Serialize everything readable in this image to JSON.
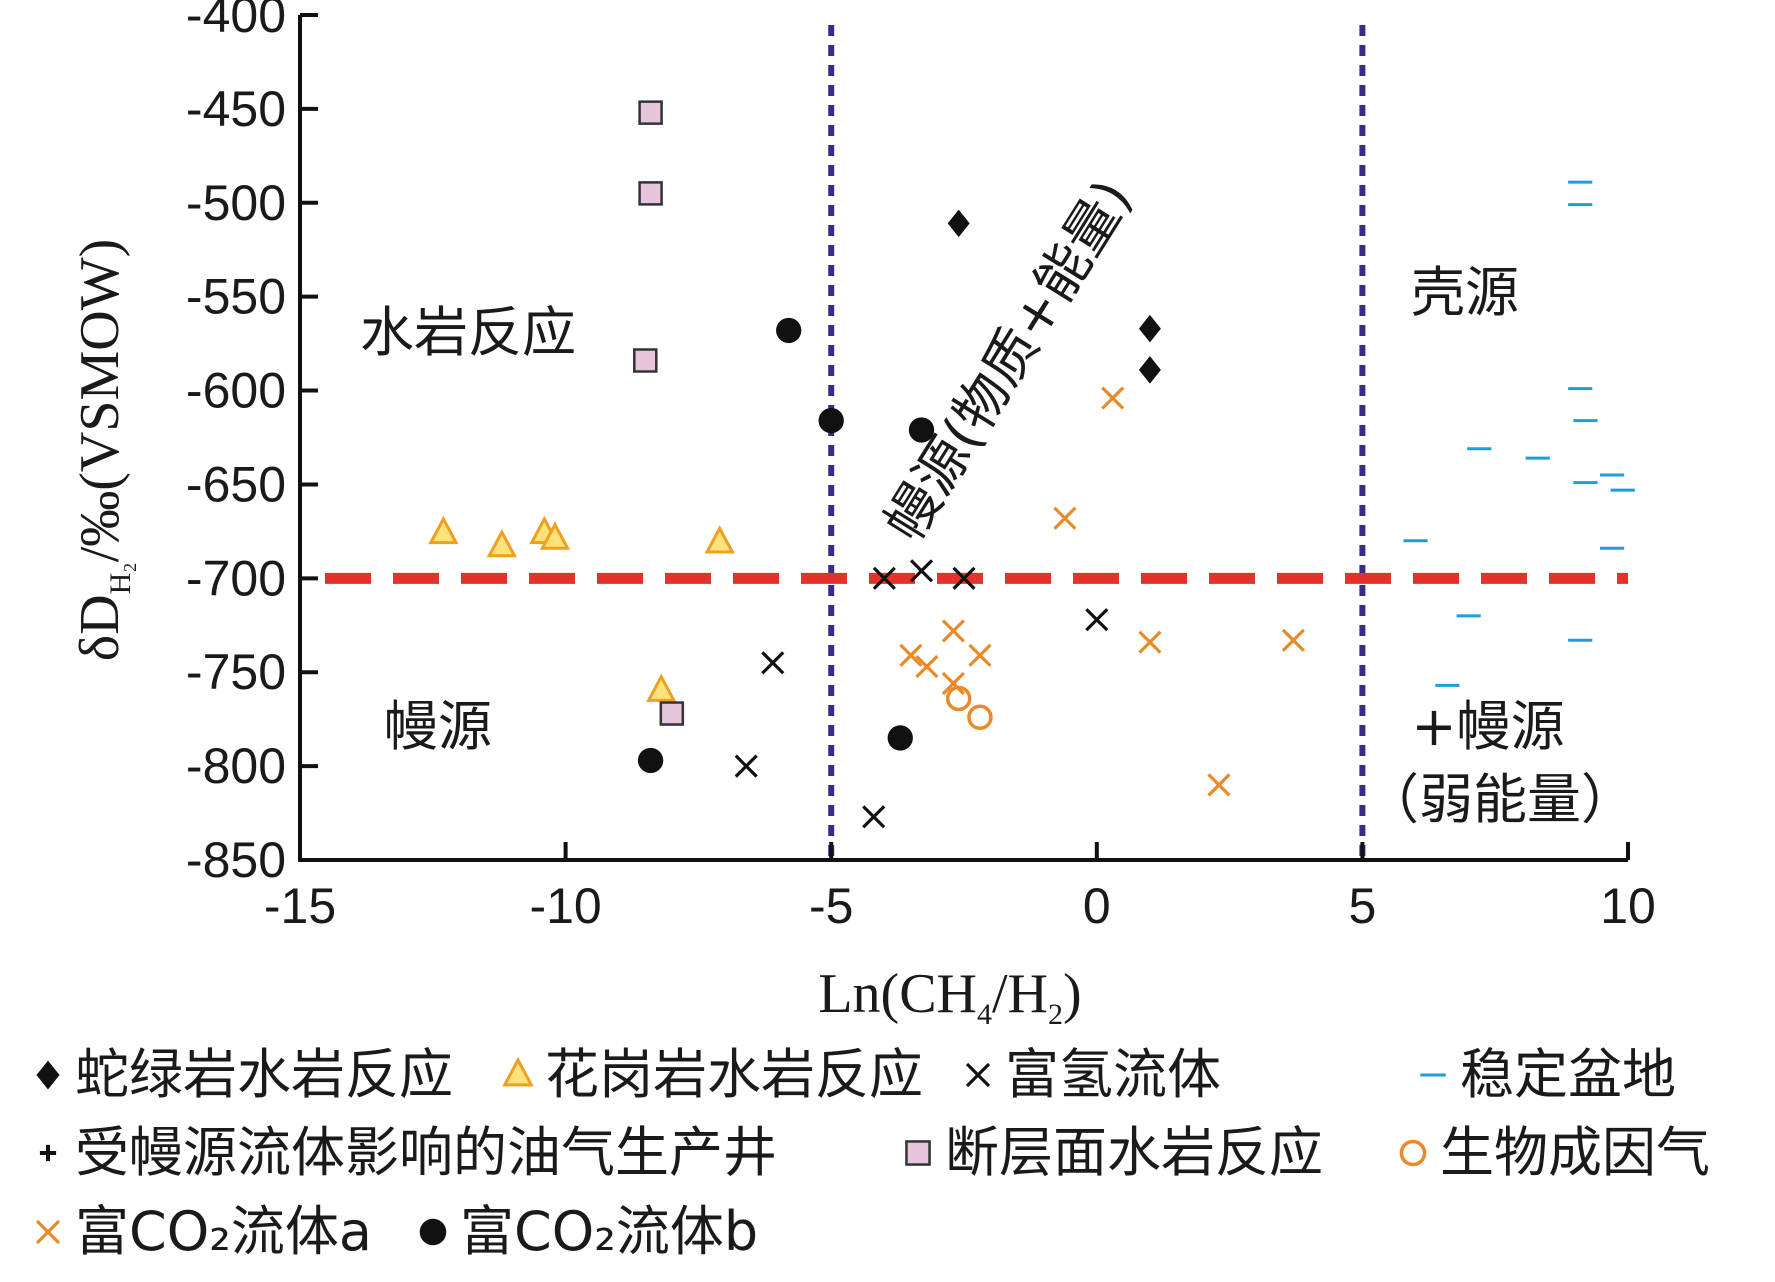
{
  "chart_data": {
    "type": "scatter",
    "xlabel": {
      "prefix": "Ln(CH",
      "sub1": "4",
      "mid": "/H",
      "sub2": "2",
      "suffix": ")"
    },
    "ylabel": {
      "prefix": "δD",
      "sub": "H₂",
      "suffix": "/‰(VSMOW)"
    },
    "xlim": [
      -15,
      10
    ],
    "ylim": [
      -850,
      -400
    ],
    "xticks": [
      -15,
      -10,
      -5,
      0,
      5,
      10
    ],
    "yticks": [
      -400,
      -450,
      -500,
      -550,
      -600,
      -650,
      -700,
      -750,
      -800,
      -850
    ],
    "xtick_labels": [
      "-15",
      "-10",
      "-5",
      "0",
      "5",
      "10"
    ],
    "ytick_labels": [
      "-400",
      "-450",
      "-500",
      "-550",
      "-600",
      "-650",
      "-700",
      "-750",
      "-800",
      "-850"
    ],
    "reference_lines": {
      "vertical_x": [
        -5,
        5
      ],
      "vertical_color": "#3b2a8a",
      "horizontal_y": -700,
      "horizontal_color": "#e4322b"
    },
    "regions": {
      "water_rock": "水岩反应",
      "mantle": "幔源",
      "mantle_matter_energy": "幔源(物质+能量)",
      "crust": "壳源",
      "crust_plus_mantle_line1": "+幔源",
      "crust_plus_mantle_line2": "（弱能量）"
    },
    "series": [
      {
        "name": "蛇绿岩水岩反应",
        "marker": "diamond",
        "color": "#111111",
        "x": [
          -2.6,
          1.0,
          1.0
        ],
        "y": [
          -511,
          -567,
          -589
        ]
      },
      {
        "name": "花岗岩水岩反应",
        "marker": "triangle",
        "color": "#f0a020",
        "fill": "#fbe27a",
        "x": [
          -12.3,
          -11.2,
          -10.4,
          -10.2,
          -7.1,
          -8.2
        ],
        "y": [
          -676,
          -683,
          -676,
          -679,
          -681,
          -760
        ]
      },
      {
        "name": "富氢流体",
        "marker": "x",
        "color": "#111111",
        "x": [
          -4.0,
          -3.3,
          -2.5,
          0.0,
          -6.1,
          -6.6,
          -4.2
        ],
        "y": [
          -700,
          -696,
          -700,
          -722,
          -745,
          -800,
          -827
        ]
      },
      {
        "name": "稳定盆地",
        "marker": "dash",
        "color": "#1b9fd6",
        "x": [
          9.1,
          9.1,
          9.1,
          9.2,
          7.2,
          8.3,
          9.2,
          9.7,
          9.9,
          6.0,
          7.0,
          9.1,
          6.6,
          9.7
        ],
        "y": [
          -489,
          -501,
          -599,
          -616,
          -631,
          -636,
          -649,
          -645,
          -653,
          -680,
          -720,
          -733,
          -757,
          -684
        ]
      },
      {
        "name": "受幔源流体影响的油气生产井",
        "marker": "plus",
        "color": "#111111",
        "x": [],
        "y": []
      },
      {
        "name": "断层面水岩反应",
        "marker": "square",
        "color": "#333333",
        "fill": "#e6c5dc",
        "x": [
          -8.4,
          -8.4,
          -8.5,
          -8.0
        ],
        "y": [
          -452,
          -495,
          -584,
          -772
        ]
      },
      {
        "name": "生物成因气",
        "marker": "circle-open",
        "color": "#e98a2a",
        "x": [
          -2.6,
          -2.2
        ],
        "y": [
          -764,
          -774
        ]
      },
      {
        "name": "富CO₂流体a",
        "marker": "x",
        "color": "#e98a2a",
        "x": [
          0.3,
          -0.6,
          1.0,
          3.7,
          -2.7,
          -3.5,
          -3.2,
          -2.2,
          -2.7,
          2.3
        ],
        "y": [
          -604,
          -668,
          -734,
          -733,
          -728,
          -741,
          -747,
          -741,
          -756,
          -810
        ]
      },
      {
        "name": "富CO₂流体b",
        "marker": "dot",
        "color": "#111111",
        "x": [
          -5.8,
          -5.0,
          -3.3,
          -8.4,
          -3.7
        ],
        "y": [
          -568,
          -616,
          -621,
          -797,
          -785
        ]
      }
    ]
  },
  "legend": {
    "rows": [
      [
        {
          "series": 0,
          "label": "蛇绿岩水岩反应"
        },
        {
          "series": 1,
          "label": "花岗岩水岩反应"
        },
        {
          "series": 2,
          "label": "富氢流体"
        },
        {
          "series": 3,
          "label": "稳定盆地"
        }
      ],
      [
        {
          "series": 4,
          "label": "受幔源流体影响的油气生产井"
        },
        {
          "series": 5,
          "label": "断层面水岩反应"
        },
        {
          "series": 6,
          "label": "生物成因气"
        }
      ],
      [
        {
          "series": 7,
          "label": "富CO₂流体a"
        },
        {
          "series": 8,
          "label": "富CO₂流体b"
        }
      ]
    ]
  }
}
